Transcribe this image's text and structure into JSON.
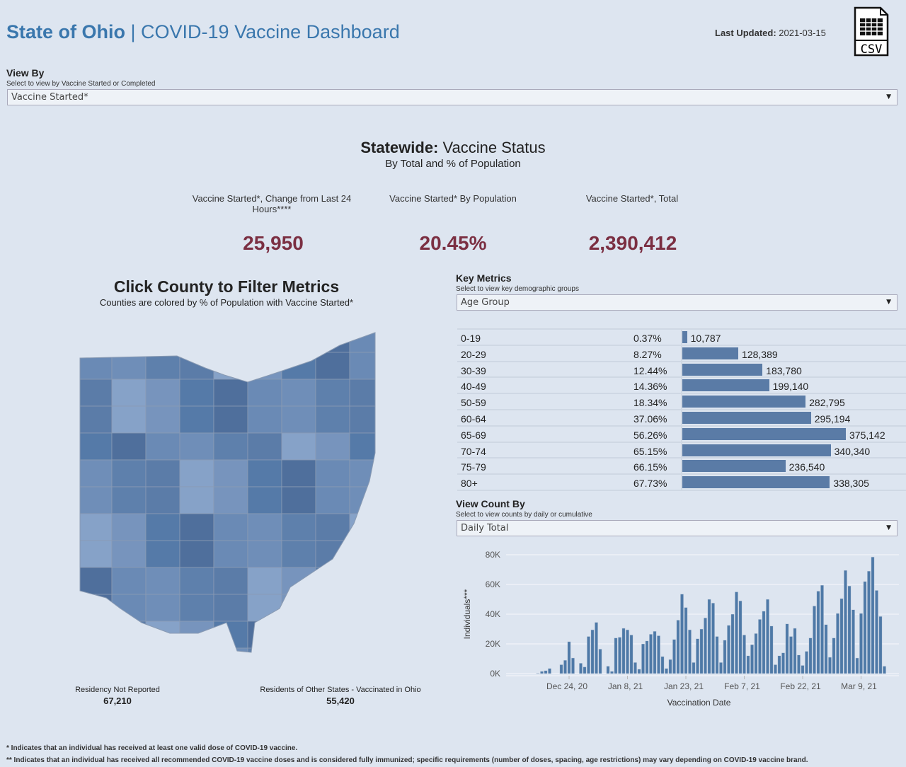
{
  "header": {
    "title_bold": "State of Ohio",
    "title_sep": " | ",
    "title_rest": "COVID-19 Vaccine Dashboard",
    "last_updated_label": "Last Updated:",
    "last_updated_value": "2021-03-15",
    "csv_icon": "csv-file-icon",
    "csv_label": "CSV"
  },
  "view_by": {
    "label": "View By",
    "hint": "Select to view by Vaccine Started or Completed",
    "value": "Vaccine Started*"
  },
  "statewide": {
    "title_bold": "Statewide:",
    "title_rest": " Vaccine Status",
    "subtitle": "By Total and % of Population"
  },
  "kpis": [
    {
      "label": "Vaccine Started*, Change from Last 24 Hours****",
      "value": "25,950"
    },
    {
      "label": "Vaccine Started* By Population",
      "value": "20.45%"
    },
    {
      "label": "Vaccine Started*, Total",
      "value": "2,390,412"
    }
  ],
  "map": {
    "title": "Click County to Filter Metrics",
    "subtitle": "Counties are colored by % of Population with Vaccine Started*",
    "residency_label": "Residency Not Reported",
    "residency_value": "67,210",
    "other_states_label": "Residents of Other States - Vaccinated in Ohio",
    "other_states_value": "55,420"
  },
  "key_metrics": {
    "label": "Key Metrics",
    "hint": "Select to view key demographic groups",
    "value": "Age Group",
    "rows": [
      {
        "group": "0-19",
        "pct": "0.37%",
        "count": 10787,
        "count_label": "10,787"
      },
      {
        "group": "20-29",
        "pct": "8.27%",
        "count": 128389,
        "count_label": "128,389"
      },
      {
        "group": "30-39",
        "pct": "12.44%",
        "count": 183780,
        "count_label": "183,780"
      },
      {
        "group": "40-49",
        "pct": "14.36%",
        "count": 199140,
        "count_label": "199,140"
      },
      {
        "group": "50-59",
        "pct": "18.34%",
        "count": 282795,
        "count_label": "282,795"
      },
      {
        "group": "60-64",
        "pct": "37.06%",
        "count": 295194,
        "count_label": "295,194"
      },
      {
        "group": "65-69",
        "pct": "56.26%",
        "count": 375142,
        "count_label": "375,142"
      },
      {
        "group": "70-74",
        "pct": "65.15%",
        "count": 340340,
        "count_label": "340,340"
      },
      {
        "group": "75-79",
        "pct": "66.15%",
        "count": 236540,
        "count_label": "236,540"
      },
      {
        "group": "80+",
        "pct": "67.73%",
        "count": 338305,
        "count_label": "338,305"
      }
    ]
  },
  "view_count": {
    "label": "View Count By",
    "hint": "Select to view counts by daily or cumulative",
    "value": "Daily Total"
  },
  "colors": {
    "accent": "#3a77ad",
    "kpi": "#7b2f42",
    "bar": "#4e79a7"
  },
  "chart_data": {
    "type": "bar",
    "xlabel": "Vaccination Date",
    "ylabel": "Individuals***",
    "ylim": [
      0,
      80000
    ],
    "yticks": [
      0,
      20000,
      40000,
      60000,
      80000
    ],
    "ytick_labels": [
      "0K",
      "20K",
      "40K",
      "60K",
      "80K"
    ],
    "xtick_labels": [
      "Dec 24, 20",
      "Jan 8, 21",
      "Jan 23, 21",
      "Feb 7, 21",
      "Feb 22, 21",
      "Mar 9, 21"
    ],
    "xtick_dates": [
      "2020-12-24",
      "2021-01-08",
      "2021-01-23",
      "2021-02-07",
      "2021-02-22",
      "2021-03-09"
    ],
    "grid": true,
    "x": [
      "2020-12-16",
      "2020-12-17",
      "2020-12-18",
      "2020-12-19",
      "2020-12-20",
      "2020-12-21",
      "2020-12-22",
      "2020-12-23",
      "2020-12-24",
      "2020-12-25",
      "2020-12-26",
      "2020-12-27",
      "2020-12-28",
      "2020-12-29",
      "2020-12-30",
      "2020-12-31",
      "2021-01-01",
      "2021-01-02",
      "2021-01-03",
      "2021-01-04",
      "2021-01-05",
      "2021-01-06",
      "2021-01-07",
      "2021-01-08",
      "2021-01-09",
      "2021-01-10",
      "2021-01-11",
      "2021-01-12",
      "2021-01-13",
      "2021-01-14",
      "2021-01-15",
      "2021-01-16",
      "2021-01-17",
      "2021-01-18",
      "2021-01-19",
      "2021-01-20",
      "2021-01-21",
      "2021-01-22",
      "2021-01-23",
      "2021-01-24",
      "2021-01-25",
      "2021-01-26",
      "2021-01-27",
      "2021-01-28",
      "2021-01-29",
      "2021-01-30",
      "2021-01-31",
      "2021-02-01",
      "2021-02-02",
      "2021-02-03",
      "2021-02-04",
      "2021-02-05",
      "2021-02-06",
      "2021-02-07",
      "2021-02-08",
      "2021-02-09",
      "2021-02-10",
      "2021-02-11",
      "2021-02-12",
      "2021-02-13",
      "2021-02-14",
      "2021-02-15",
      "2021-02-16",
      "2021-02-17",
      "2021-02-18",
      "2021-02-19",
      "2021-02-20",
      "2021-02-21",
      "2021-02-22",
      "2021-02-23",
      "2021-02-24",
      "2021-02-25",
      "2021-02-26",
      "2021-02-27",
      "2021-02-28",
      "2021-03-01",
      "2021-03-02",
      "2021-03-03",
      "2021-03-04",
      "2021-03-05",
      "2021-03-06",
      "2021-03-07",
      "2021-03-08",
      "2021-03-09",
      "2021-03-10",
      "2021-03-11",
      "2021-03-12",
      "2021-03-13",
      "2021-03-14",
      "2021-03-15"
    ],
    "values": [
      300,
      1500,
      2000,
      3500,
      0,
      0,
      6000,
      9000,
      21500,
      10500,
      0,
      7000,
      4500,
      25000,
      29500,
      34500,
      16500,
      0,
      5000,
      1500,
      24000,
      24500,
      30500,
      29500,
      26000,
      7500,
      3000,
      20000,
      22000,
      26500,
      28500,
      25500,
      11500,
      3500,
      9500,
      23000,
      36000,
      53500,
      44500,
      29500,
      7500,
      23500,
      30000,
      37500,
      50000,
      47500,
      25000,
      7500,
      22500,
      32500,
      40000,
      55000,
      49000,
      26000,
      12000,
      19500,
      27000,
      36500,
      42000,
      50000,
      32000,
      6000,
      12000,
      14000,
      33500,
      25000,
      30500,
      12500,
      5500,
      15000,
      24000,
      45500,
      55500,
      59500,
      33000,
      11000,
      24000,
      40500,
      50500,
      69500,
      59000,
      43000,
      10500,
      40500,
      62000,
      69000,
      78500,
      56000,
      38500,
      5000
    ]
  },
  "footnotes": [
    "* Indicates that an individual has received at least one valid dose of COVID-19 vaccine.",
    "** Indicates that an individual has received all recommended COVID-19 vaccine doses and is considered fully immunized; specific requirements (number of doses, spacing, age restrictions) may vary depending on COVID-19 vaccine brand."
  ]
}
